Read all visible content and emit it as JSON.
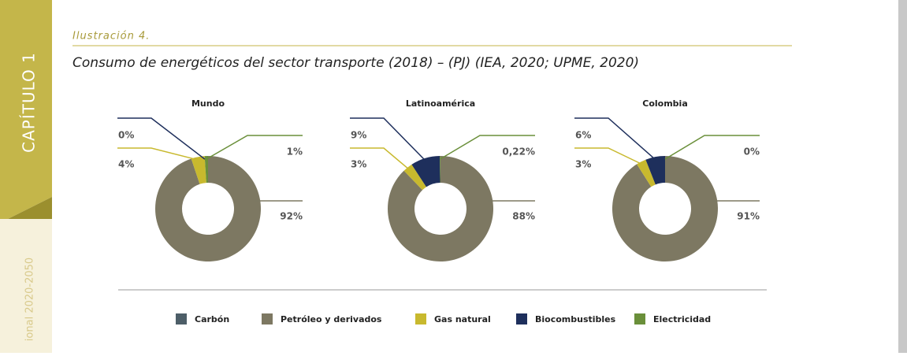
{
  "page": {
    "chapter": "CAPÍTULO 1",
    "side_note": "ional 2020-2050",
    "caption": "Ilustración 4.",
    "heading": "Consumo de energéticos del sector transporte (2018) – (PJ) (IEA, 2020; UPME, 2020)"
  },
  "legend": [
    {
      "name": "Carbón",
      "color": "#4d5e68"
    },
    {
      "name": "Petróleo y derivados",
      "color": "#7d7862"
    },
    {
      "name": "Gas natural",
      "color": "#c8b92e"
    },
    {
      "name": "Biocombustibles",
      "color": "#1e2f5c"
    },
    {
      "name": "Electricidad",
      "color": "#6a8f3a"
    }
  ],
  "chart_data": [
    {
      "type": "pie",
      "title": "Mundo",
      "categories": [
        "Petróleo y derivados",
        "Gas natural",
        "Biocombustibles",
        "Electricidad"
      ],
      "values": [
        92,
        4,
        0,
        1
      ],
      "value_labels": [
        "92%",
        "4%",
        "0%",
        "1%"
      ],
      "colors": [
        "#7d7862",
        "#c8b92e",
        "#1e2f5c",
        "#6a8f3a"
      ]
    },
    {
      "type": "pie",
      "title": "Latinoamérica",
      "categories": [
        "Petróleo y derivados",
        "Gas natural",
        "Biocombustibles",
        "Electricidad"
      ],
      "values": [
        88,
        3,
        9,
        0.22
      ],
      "value_labels": [
        "88%",
        "3%",
        "9%",
        "0,22%"
      ],
      "colors": [
        "#7d7862",
        "#c8b92e",
        "#1e2f5c",
        "#6a8f3a"
      ]
    },
    {
      "type": "pie",
      "title": "Colombia",
      "categories": [
        "Petróleo y derivados",
        "Gas natural",
        "Biocombustibles",
        "Electricidad"
      ],
      "values": [
        91,
        3,
        6,
        0
      ],
      "value_labels": [
        "91%",
        "3%",
        "6%",
        "0%"
      ],
      "colors": [
        "#7d7862",
        "#c8b92e",
        "#1e2f5c",
        "#6a8f3a"
      ]
    }
  ]
}
